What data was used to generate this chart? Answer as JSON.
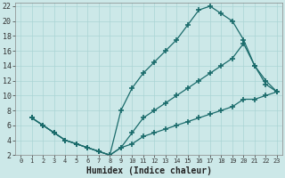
{
  "xlabel": "Humidex (Indice chaleur)",
  "ylabel": "",
  "background_color": "#cce8e8",
  "grid_color": "#aad4d4",
  "line_color": "#1a6b6b",
  "xlim": [
    -0.5,
    23.5
  ],
  "ylim": [
    2,
    22.5
  ],
  "xticks": [
    0,
    1,
    2,
    3,
    4,
    5,
    6,
    7,
    8,
    9,
    10,
    11,
    12,
    13,
    14,
    15,
    16,
    17,
    18,
    19,
    20,
    21,
    22,
    23
  ],
  "yticks": [
    2,
    4,
    6,
    8,
    10,
    12,
    14,
    16,
    18,
    20,
    22
  ],
  "line1_x": [
    1,
    2,
    3,
    4,
    5,
    6,
    7,
    8,
    9,
    10,
    11,
    12,
    13,
    14,
    15,
    16,
    17,
    18,
    19,
    20,
    21,
    22,
    23
  ],
  "line1_y": [
    7,
    6,
    5,
    4,
    3.5,
    3,
    2.5,
    2,
    8,
    11,
    13,
    14.5,
    16,
    17.5,
    19.5,
    21.5,
    22,
    21,
    20,
    17.5,
    14,
    11.5,
    10.5
  ],
  "line2_x": [
    1,
    2,
    3,
    4,
    5,
    6,
    7,
    8,
    9,
    10,
    11,
    12,
    13,
    14,
    15,
    16,
    17,
    18,
    19,
    20,
    21,
    22,
    23
  ],
  "line2_y": [
    7,
    6,
    5,
    4,
    3.5,
    3,
    2.5,
    2,
    3,
    5,
    7,
    8,
    9,
    10,
    11,
    12,
    13,
    14,
    15,
    17,
    14,
    12,
    10.5
  ],
  "line3_x": [
    1,
    2,
    3,
    4,
    5,
    6,
    7,
    8,
    9,
    10,
    11,
    12,
    13,
    14,
    15,
    16,
    17,
    18,
    19,
    20,
    21,
    22,
    23
  ],
  "line3_y": [
    7,
    6,
    5,
    4,
    3.5,
    3,
    2.5,
    2,
    3,
    3.5,
    4.5,
    5,
    5.5,
    6,
    6.5,
    7,
    7.5,
    8,
    8.5,
    9.5,
    9.5,
    10,
    10.5
  ]
}
